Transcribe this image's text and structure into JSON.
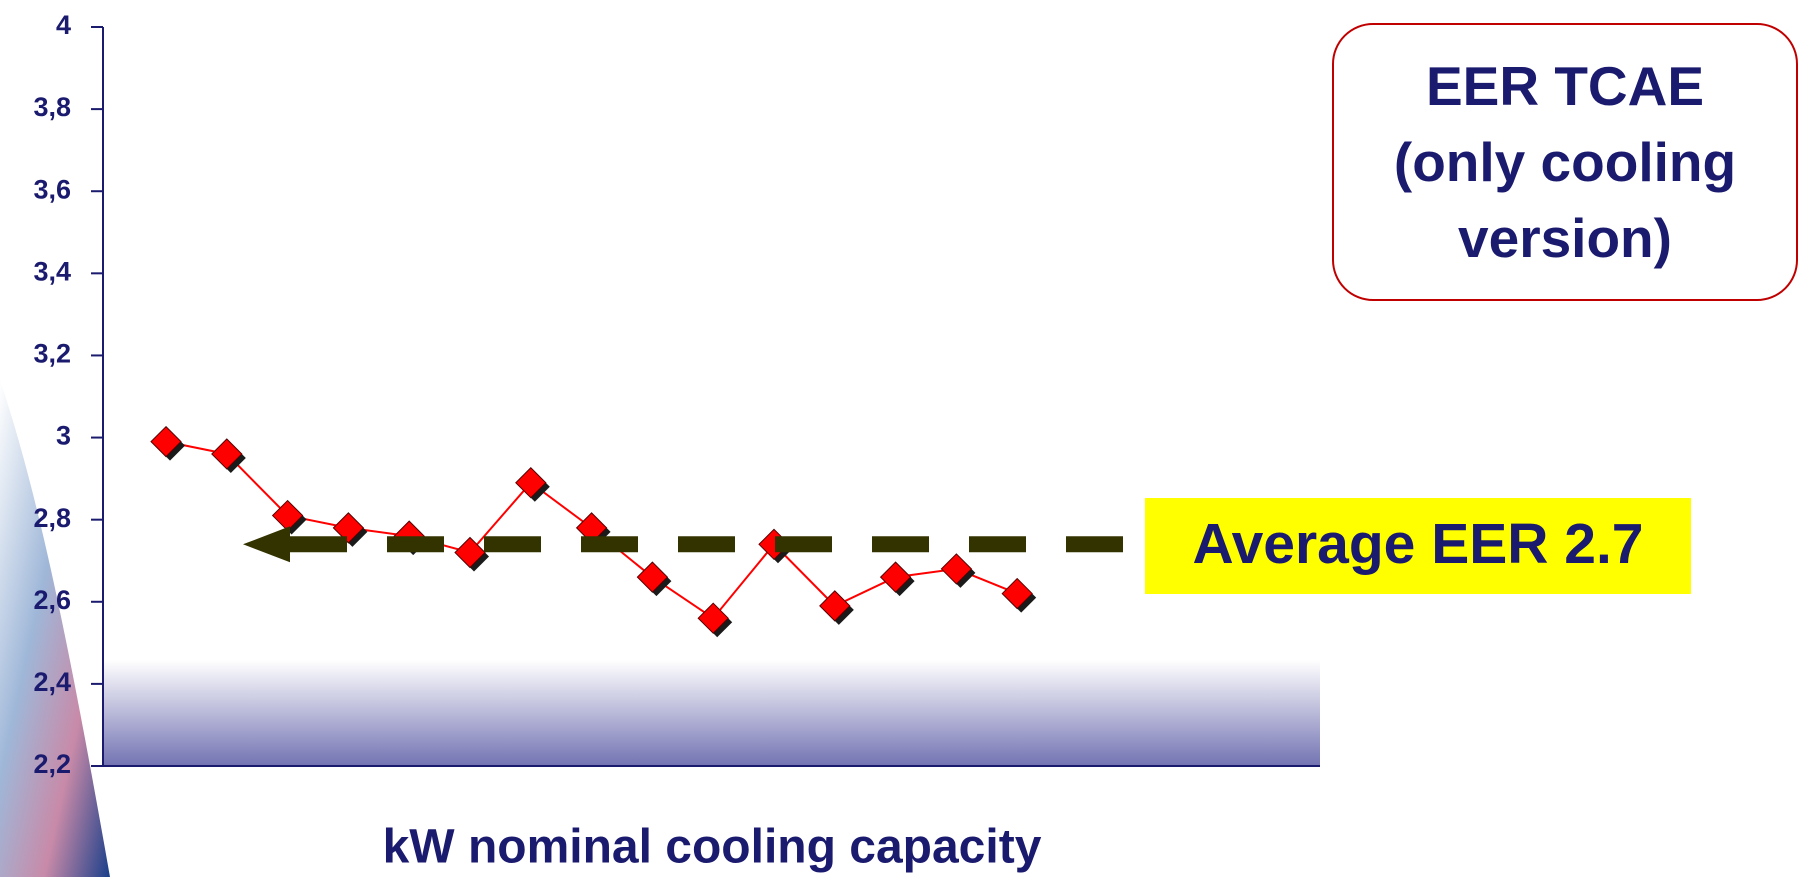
{
  "chart_data": {
    "type": "line",
    "title": "EER TCAE (only cooling version)",
    "x_label": "kW nominal cooling capacity",
    "categories": [
      null,
      null,
      null,
      null,
      null,
      null,
      null,
      null,
      null,
      null,
      null,
      null,
      null,
      null,
      null
    ],
    "series": [
      {
        "color": "#ff0000",
        "values": [
          2.99,
          2.96,
          2.81,
          2.78,
          2.76,
          2.72,
          2.89,
          2.78,
          2.66,
          2.56,
          2.74,
          2.59,
          2.66,
          2.68,
          2.62
        ]
      }
    ],
    "ylim": [
      2.2,
      4
    ],
    "yticks": [
      {
        "value": 2.2,
        "label": "2,2"
      },
      {
        "value": 2.4,
        "label": "2,4"
      },
      {
        "value": 2.6,
        "label": "2,6"
      },
      {
        "value": 2.8,
        "label": "2,8"
      },
      3,
      {
        "value": 3.2,
        "label": "3,2"
      },
      {
        "value": 3.4,
        "label": "3,4"
      },
      {
        "value": 3.6,
        "label": "3,6"
      },
      {
        "value": 3.8,
        "label": "3,8"
      },
      4
    ],
    "reference_line": {
      "value": 2.74,
      "label": "Average EER 2.7",
      "color": "#333300"
    }
  }
}
